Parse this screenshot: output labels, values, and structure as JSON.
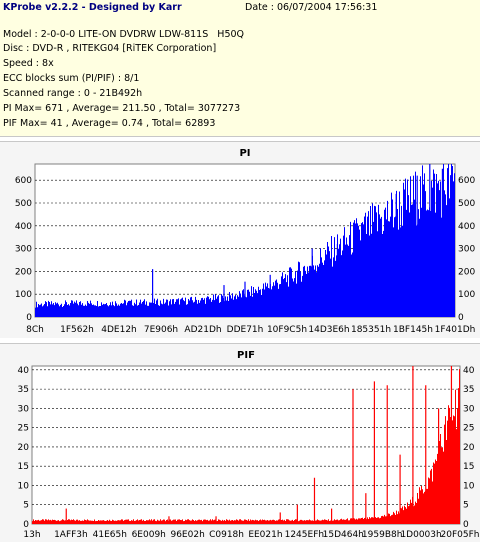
{
  "header": {
    "app_title": "KProbe v2.2.2 - Designed by Karr",
    "date_line": "Date : 06/07/2004 17:56:31",
    "model_line": "Model : 2-0-0-0 LITE-ON DVDRW LDW-811S   H50Q",
    "disc_line": "Disc : DVD-R , RITEKG04 [RiTEK Corporation]",
    "speed_line": "Speed : 8x",
    "ecc_line": "ECC blocks sum (PI/PIF) : 8/1",
    "range_line": "Scanned range : 0 - 21B492h",
    "pi_line": "PI Max= 671 , Average= 211.50 , Total= 3077273",
    "pif_line": "PIF Max= 41 , Average= 0.74 , Total= 62893"
  },
  "colors": {
    "pi_bar": "#0000ff",
    "pif_bar": "#ff0000",
    "plot_bg": "#ffffff",
    "grid": "#000000"
  },
  "chart_data": [
    {
      "type": "bar",
      "title": "PI",
      "ylim": [
        0,
        671
      ],
      "yticks": [
        0,
        100,
        200,
        300,
        400,
        500,
        600
      ],
      "xtick_labels": [
        "8Ch",
        "1F562h",
        "4DE12h",
        "7E906h",
        "AD21Dh",
        "DDE71h",
        "10F9C5h",
        "14D3E6h",
        "185351h",
        "1BF145h",
        "1F401Dh"
      ],
      "grid": "horizontal dashed",
      "baseline_profile": {
        "x": [
          0,
          0.1,
          0.2,
          0.3,
          0.4,
          0.45,
          0.5,
          0.55,
          0.6,
          0.65,
          0.7,
          0.75,
          0.8,
          0.85,
          0.9,
          0.95,
          1.0
        ],
        "y": [
          55,
          60,
          62,
          65,
          75,
          85,
          100,
          130,
          170,
          220,
          280,
          340,
          400,
          460,
          520,
          560,
          590
        ]
      },
      "spikes": [
        {
          "x": 0.28,
          "y": 210
        },
        {
          "x": 0.45,
          "y": 140
        },
        {
          "x": 0.5,
          "y": 155
        },
        {
          "x": 0.56,
          "y": 185
        },
        {
          "x": 0.66,
          "y": 300
        },
        {
          "x": 0.72,
          "y": 320
        },
        {
          "x": 0.77,
          "y": 400
        },
        {
          "x": 0.82,
          "y": 450
        },
        {
          "x": 0.86,
          "y": 540
        },
        {
          "x": 0.91,
          "y": 620
        },
        {
          "x": 0.94,
          "y": 671
        },
        {
          "x": 0.97,
          "y": 650
        },
        {
          "x": 0.99,
          "y": 600
        }
      ]
    },
    {
      "type": "bar",
      "title": "PIF",
      "ylim": [
        0,
        41
      ],
      "yticks": [
        0,
        5,
        10,
        15,
        20,
        25,
        30,
        35,
        40
      ],
      "xtick_labels": [
        "13h",
        "1AFF3h",
        "41E65h",
        "6E009h",
        "96E02h",
        "C0918h",
        "EE021h",
        "1245EFh",
        "15D464h",
        "1959B8h",
        "1D0003h",
        "20F05Fh"
      ],
      "grid": "horizontal dashed",
      "baseline_profile": {
        "x": [
          0,
          0.5,
          0.7,
          0.8,
          0.84,
          0.87,
          0.9,
          0.93,
          0.96,
          1.0
        ],
        "y": [
          1,
          1,
          1,
          1.5,
          2.5,
          4,
          7,
          12,
          22,
          35
        ]
      },
      "spikes": [
        {
          "x": 0.08,
          "y": 4
        },
        {
          "x": 0.32,
          "y": 2
        },
        {
          "x": 0.43,
          "y": 2
        },
        {
          "x": 0.58,
          "y": 3
        },
        {
          "x": 0.62,
          "y": 5
        },
        {
          "x": 0.66,
          "y": 12
        },
        {
          "x": 0.7,
          "y": 4
        },
        {
          "x": 0.75,
          "y": 35
        },
        {
          "x": 0.78,
          "y": 8
        },
        {
          "x": 0.8,
          "y": 37
        },
        {
          "x": 0.83,
          "y": 36
        },
        {
          "x": 0.86,
          "y": 18
        },
        {
          "x": 0.89,
          "y": 41
        },
        {
          "x": 0.92,
          "y": 36
        },
        {
          "x": 0.95,
          "y": 30
        },
        {
          "x": 0.98,
          "y": 41
        }
      ]
    }
  ]
}
